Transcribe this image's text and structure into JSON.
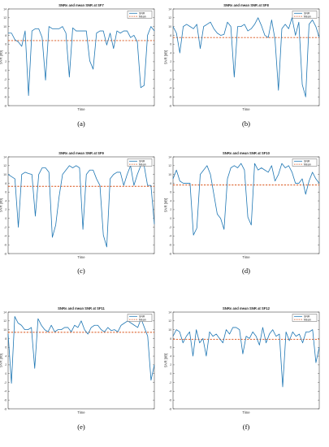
{
  "figure": {
    "panels": [
      {
        "label": "(a)"
      },
      {
        "label": "(b)"
      },
      {
        "label": "(c)"
      },
      {
        "label": "(d)"
      },
      {
        "label": "(e)"
      },
      {
        "label": "(f)"
      }
    ]
  },
  "colors": {
    "snr_line": "#1f77b4",
    "mean_line": "#d95319"
  },
  "chart_data": [
    {
      "type": "line",
      "title": "SNRs and mean SNR at SF7",
      "xlabel": "Time",
      "ylabel": "SNR [dB]",
      "ylim": [
        -8,
        14
      ],
      "yticks": [
        -8,
        -6,
        -4,
        -2,
        0,
        2,
        4,
        6,
        8,
        10,
        12,
        14
      ],
      "xtick_labels": false,
      "grid": false,
      "legend_position": "top-right",
      "series": [
        {
          "name": "SNR",
          "style": "solid",
          "values": [
            8.5,
            8.5,
            7,
            6.5,
            5.5,
            9,
            -5.7,
            9,
            9.5,
            9.5,
            7.5,
            -2.2,
            10,
            9.5,
            9.5,
            9.5,
            10,
            8.5,
            -1.5,
            9.7,
            9,
            9,
            9,
            9,
            2.2,
            0.3,
            8.5,
            9,
            9,
            5.8,
            8.5,
            5,
            9,
            8.5,
            9,
            9,
            7.5,
            8,
            6.5,
            -3.9,
            -3.4,
            8,
            10,
            9
          ]
        },
        {
          "name": "Mean",
          "style": "dashed",
          "values": [
            6.8
          ]
        }
      ]
    },
    {
      "type": "line",
      "title": "SNRs and mean SNR at SF8",
      "xlabel": "Time",
      "ylabel": "SNR [dB]",
      "ylim": [
        -8,
        14
      ],
      "yticks": [
        -8,
        -6,
        -4,
        -2,
        0,
        2,
        4,
        6,
        8,
        10,
        12,
        14
      ],
      "xtick_labels": false,
      "grid": false,
      "legend_position": "top-right",
      "series": [
        {
          "name": "SNR",
          "style": "solid",
          "values": [
            10,
            8.5,
            4,
            10,
            10.5,
            10,
            9.5,
            10.5,
            5,
            10,
            10.5,
            11,
            9.5,
            8.5,
            8,
            8.2,
            11,
            10,
            -1.5,
            10,
            10,
            10.5,
            9,
            9.5,
            10.5,
            12,
            10.2,
            8,
            7.5,
            11.5,
            7,
            -4.5,
            9.5,
            10.5,
            9.5,
            12,
            8,
            11,
            -3.2,
            -6,
            10.5,
            11.5,
            10,
            7.5
          ]
        },
        {
          "name": "Mean",
          "style": "dashed",
          "values": [
            7.5
          ]
        }
      ]
    },
    {
      "type": "line",
      "title": "SNRs and mean SNR at SF9",
      "xlabel": "Time",
      "ylabel": "SNR [dB]",
      "ylim": [
        -8,
        14
      ],
      "yticks": [
        -8,
        -6,
        -4,
        -2,
        0,
        2,
        4,
        6,
        8,
        10,
        12,
        14
      ],
      "xtick_labels": false,
      "grid": false,
      "legend_position": "top-right",
      "series": [
        {
          "name": "SNR",
          "style": "solid",
          "values": [
            10,
            9.5,
            9,
            -2,
            10,
            10.5,
            10.2,
            10,
            0.5,
            10,
            11.5,
            11.5,
            10.5,
            -4.3,
            -1.5,
            5,
            10,
            11,
            12,
            11.5,
            12,
            11.5,
            -2.5,
            10,
            11,
            11,
            9,
            7.5,
            -3.8,
            -6.5,
            9,
            10,
            10.5,
            10.5,
            7.5,
            10,
            12,
            7.5,
            10,
            12,
            12,
            7.5,
            7.5,
            -1.3
          ]
        },
        {
          "name": "Mean",
          "style": "dashed",
          "values": [
            7.3
          ]
        }
      ]
    },
    {
      "type": "line",
      "title": "SNRs and mean SNR at SF10",
      "xlabel": "Time",
      "ylabel": "SNR [dB]",
      "ylim": [
        -8,
        14
      ],
      "yticks": [
        -8,
        -6,
        -4,
        -2,
        0,
        2,
        4,
        6,
        8,
        10,
        12,
        14
      ],
      "xtick_labels": false,
      "grid": false,
      "legend_position": "top-right",
      "series": [
        {
          "name": "SNR",
          "style": "solid",
          "values": [
            9,
            11,
            8.5,
            8,
            8,
            8,
            -3.8,
            -2.2,
            10,
            11,
            12,
            10,
            5.5,
            1,
            0,
            -2.5,
            9,
            11.5,
            12,
            11.5,
            12.5,
            11,
            0.3,
            -1.5,
            12.5,
            11,
            11.5,
            11,
            10.5,
            12,
            8.5,
            10,
            12.5,
            11.5,
            12,
            10.5,
            8,
            8,
            9,
            5.5,
            8.5,
            10.5,
            9,
            8
          ]
        },
        {
          "name": "Mean",
          "style": "dashed",
          "values": [
            7.6
          ]
        }
      ]
    },
    {
      "type": "line",
      "title": "SNRs and mean SNR at SF11",
      "xlabel": "Time",
      "ylabel": "SNR [dB]",
      "ylim": [
        -8,
        14
      ],
      "yticks": [
        -8,
        -6,
        -4,
        -2,
        0,
        2,
        4,
        6,
        8,
        10,
        12,
        14
      ],
      "xtick_labels": false,
      "grid": false,
      "legend_position": "top-right",
      "series": [
        {
          "name": "SNR",
          "style": "solid",
          "values": [
            9,
            -2.2,
            13,
            11.5,
            11,
            10,
            10,
            10.5,
            1.2,
            12.5,
            11,
            10,
            9.5,
            11,
            9.5,
            10,
            10,
            10.5,
            10.5,
            9.5,
            11,
            10.5,
            12,
            10,
            9,
            10.5,
            11,
            11,
            10,
            9.5,
            10.5,
            9.8,
            10,
            9.5,
            11,
            11.5,
            12,
            11.5,
            11,
            10.5,
            12.5,
            10.5,
            8.5,
            -1.5,
            2
          ]
        },
        {
          "name": "Mean",
          "style": "dashed",
          "values": [
            9.4
          ]
        }
      ]
    },
    {
      "type": "line",
      "title": "SNRs and mean SNR at SF12",
      "xlabel": "Time",
      "ylabel": "SNR [dB]",
      "ylim": [
        -8,
        14
      ],
      "yticks": [
        -8,
        -6,
        -4,
        -2,
        0,
        2,
        4,
        6,
        8,
        10,
        12,
        14
      ],
      "xtick_labels": false,
      "grid": false,
      "legend_position": "top-right",
      "series": [
        {
          "name": "SNR",
          "style": "solid",
          "values": [
            8.5,
            10,
            9.5,
            7,
            8.5,
            9.5,
            4,
            10,
            7,
            8,
            4,
            9.5,
            8.5,
            9,
            8,
            7,
            10,
            9,
            10.5,
            10.5,
            10,
            4.5,
            8.5,
            8,
            9.5,
            8.5,
            6.5,
            10.5,
            7,
            9,
            10,
            8.5,
            9,
            -3,
            9.5,
            7.5,
            9.5,
            8.5,
            9,
            7,
            9.5,
            9.5,
            10,
            2.5,
            6
          ]
        },
        {
          "name": "Mean",
          "style": "dashed",
          "values": [
            7.8
          ]
        }
      ]
    }
  ]
}
